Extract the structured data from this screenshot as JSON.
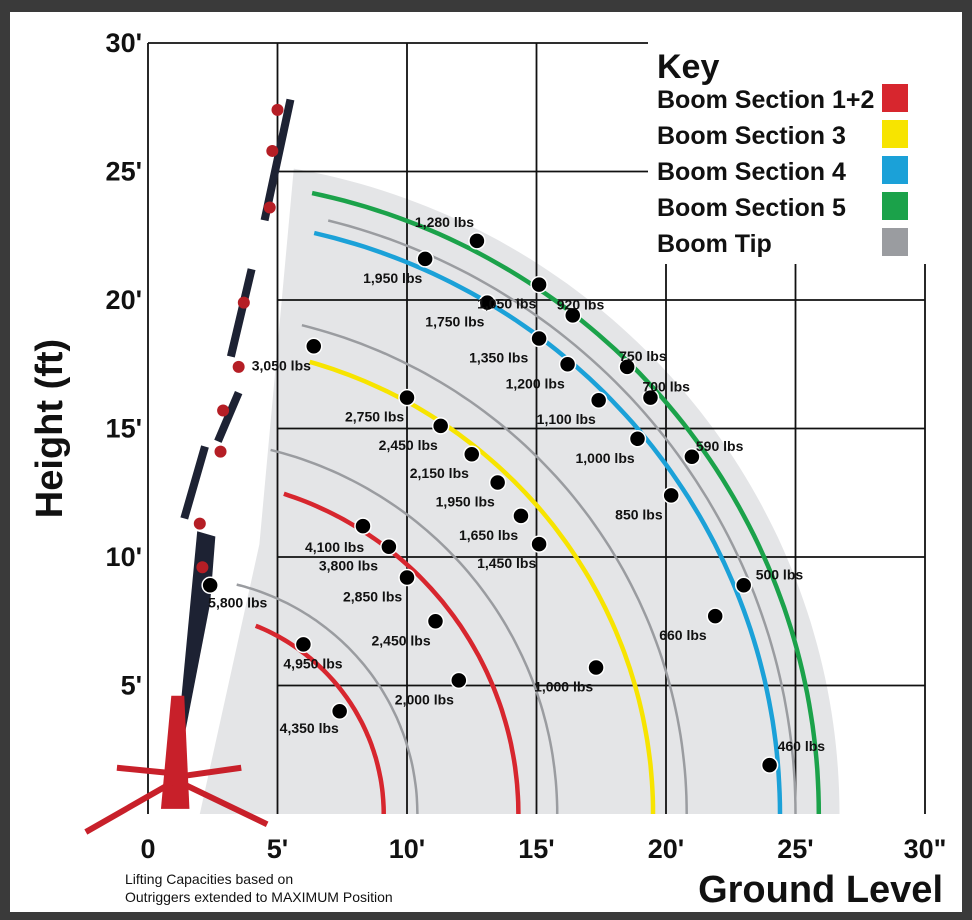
{
  "chart_data": {
    "type": "scatter",
    "title": "",
    "xlabel": "Ground Level",
    "ylabel": "Height (ft)",
    "xlim": [
      0,
      30
    ],
    "ylim": [
      0,
      30
    ],
    "x_ticks": [
      "0",
      "5'",
      "10'",
      "15'",
      "20'",
      "25'",
      "30\""
    ],
    "y_ticks": [
      "5'",
      "10'",
      "15'",
      "20'",
      "25'",
      "30'"
    ],
    "grid": true,
    "legend_position": "top-right",
    "key": {
      "title": "Key",
      "items": [
        {
          "label": "Boom Section 1+2",
          "color": "#d7262e"
        },
        {
          "label": "Boom Section 3",
          "color": "#f7e400"
        },
        {
          "label": "Boom Section 4",
          "color": "#1ba1d8"
        },
        {
          "label": "Boom Section 5",
          "color": "#1ba24a"
        },
        {
          "label": "Boom Tip",
          "color": "#9a9ca0"
        }
      ]
    },
    "series": [
      {
        "name": "Boom Section 1+2",
        "color": "#d7262e",
        "points": [
          {
            "x": 2.4,
            "y": 8.9,
            "label": "5,800 lbs"
          },
          {
            "x": 6.0,
            "y": 6.6,
            "label": "4,950 lbs"
          },
          {
            "x": 7.4,
            "y": 4.0,
            "label": "4,350 lbs"
          },
          {
            "x": 8.3,
            "y": 11.2,
            "label": "4,100 lbs"
          },
          {
            "x": 9.3,
            "y": 10.4,
            "label": "3,800 lbs"
          },
          {
            "x": 10.0,
            "y": 9.2,
            "label": "2,850 lbs"
          },
          {
            "x": 11.1,
            "y": 7.5,
            "label": "2,450 lbs"
          },
          {
            "x": 12.0,
            "y": 5.2,
            "label": "2,000 lbs"
          }
        ]
      },
      {
        "name": "Boom Section 3",
        "color": "#f7e400",
        "points": [
          {
            "x": 6.4,
            "y": 18.2,
            "label": "3,050 lbs"
          },
          {
            "x": 10.0,
            "y": 16.2,
            "label": "2,750 lbs"
          },
          {
            "x": 11.3,
            "y": 15.1,
            "label": "2,450 lbs"
          },
          {
            "x": 12.5,
            "y": 14.0,
            "label": "2,150 lbs"
          },
          {
            "x": 13.5,
            "y": 12.9,
            "label": "1,950 lbs"
          },
          {
            "x": 14.4,
            "y": 11.6,
            "label": "1,650 lbs"
          },
          {
            "x": 15.1,
            "y": 10.5,
            "label": "1,450 lbs"
          },
          {
            "x": 17.3,
            "y": 5.7,
            "label": "1,000 lbs"
          }
        ]
      },
      {
        "name": "Boom Section 4",
        "color": "#1ba1d8",
        "points": [
          {
            "x": 10.7,
            "y": 21.6,
            "label": "1,950 lbs"
          },
          {
            "x": 13.1,
            "y": 19.9,
            "label": "1,750 lbs"
          },
          {
            "x": 15.1,
            "y": 18.5,
            "label": "1,350 lbs"
          },
          {
            "x": 16.2,
            "y": 17.5,
            "label": "1,200 lbs"
          },
          {
            "x": 17.4,
            "y": 16.1,
            "label": "1,100 lbs"
          },
          {
            "x": 18.9,
            "y": 14.6,
            "label": "1,000 lbs"
          },
          {
            "x": 20.2,
            "y": 12.4,
            "label": "850 lbs"
          },
          {
            "x": 21.9,
            "y": 7.7,
            "label": "660 lbs"
          }
        ]
      },
      {
        "name": "Boom Section 5",
        "color": "#1ba24a",
        "points": [
          {
            "x": 12.7,
            "y": 22.3,
            "label": "1,280 lbs"
          },
          {
            "x": 15.1,
            "y": 20.6,
            "label": "1,050 lbs"
          },
          {
            "x": 16.4,
            "y": 19.4,
            "label": "920 lbs"
          },
          {
            "x": 18.5,
            "y": 17.4,
            "label": "750 lbs"
          },
          {
            "x": 19.4,
            "y": 16.2,
            "label": "700 lbs"
          },
          {
            "x": 21.0,
            "y": 13.9,
            "label": "590 lbs"
          },
          {
            "x": 23.0,
            "y": 8.9,
            "label": "500 lbs"
          },
          {
            "x": 24.0,
            "y": 1.9,
            "label": "460 lbs"
          }
        ]
      }
    ],
    "arcs": [
      {
        "series": "Boom Section 1+2",
        "radius": 7.9,
        "color": "#d7262e"
      },
      {
        "series": "Boom Section 1+2",
        "radius": 13.1,
        "color": "#d7262e"
      },
      {
        "series": "Boom Section 3",
        "radius": 18.3,
        "color": "#f7e400"
      },
      {
        "series": "Boom Section 4",
        "radius": 23.2,
        "color": "#1ba1d8"
      },
      {
        "series": "Boom Section 5",
        "radius": 24.7,
        "color": "#1ba24a"
      }
    ],
    "footnote": [
      "Lifting Capacities based on",
      "Outriggers extended to MAXIMUM Position"
    ]
  }
}
